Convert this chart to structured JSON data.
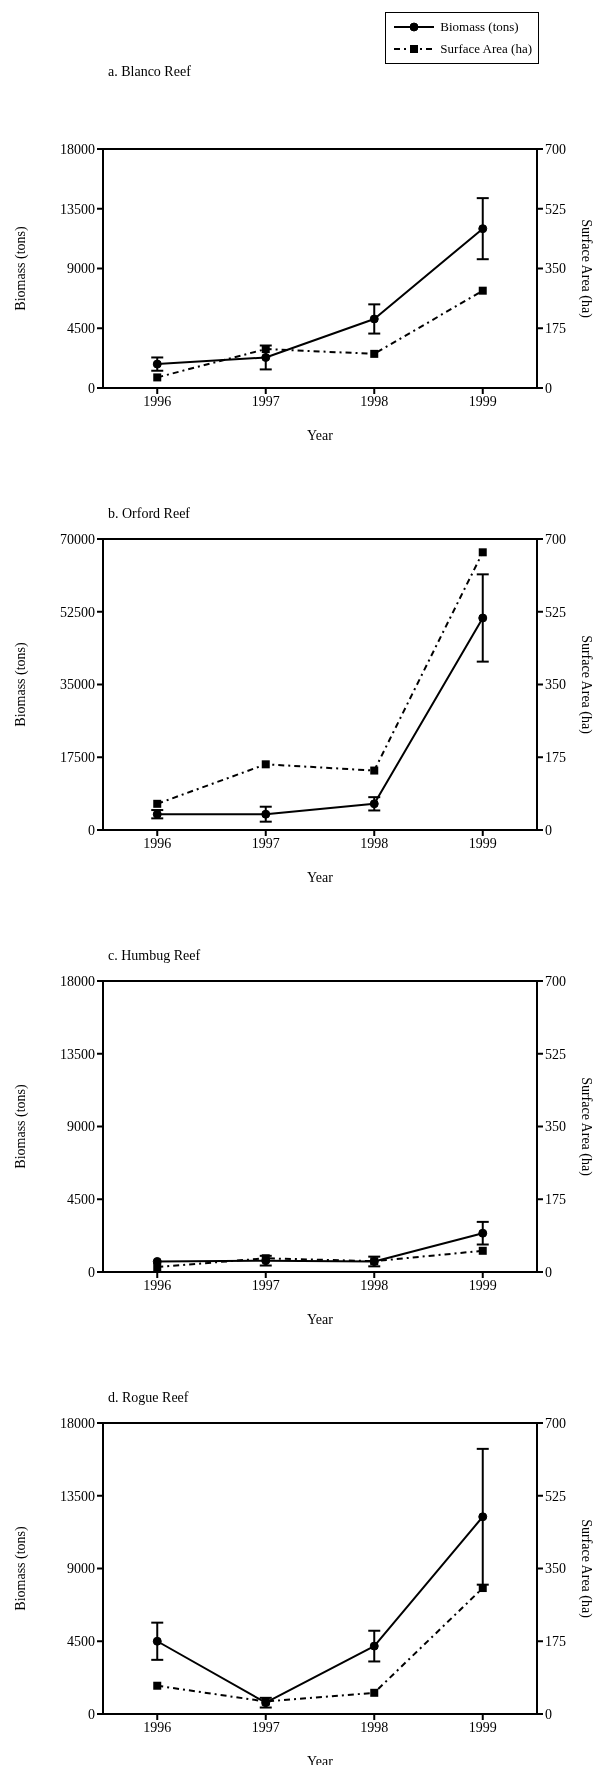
{
  "chart_data": [
    {
      "type": "line",
      "title": "a. Blanco Reef",
      "xlabel": "Year",
      "ylabel": "Biomass (tons)",
      "y2label": "Surface Area (ha)",
      "x": [
        1996,
        1997,
        1998,
        1999
      ],
      "xlim": [
        1995.5,
        1999.5
      ],
      "xticks": [
        1996,
        1997,
        1998,
        1999
      ],
      "ylim": [
        0,
        18000
      ],
      "yticks": [
        0,
        4500,
        9000,
        13500,
        18000
      ],
      "y2lim": [
        0,
        700
      ],
      "y2ticks": [
        0,
        175,
        350,
        525,
        700
      ],
      "legend": "top right",
      "grid": false,
      "series": [
        {
          "name": "Biomass (tons)",
          "color": "#000000",
          "values": [
            1800,
            2300,
            5200,
            12000
          ],
          "errors": [
            500,
            900,
            1100,
            2300
          ],
          "marker": "circle",
          "line_style": "solid"
        },
        {
          "name": "Surface Area (ha)",
          "color": "#000000",
          "values": [
            31,
            114,
            100,
            285
          ],
          "axis": "y2",
          "marker": "square",
          "line_style": "dashed"
        }
      ]
    },
    {
      "type": "line",
      "title": "b. Orford Reef",
      "xlabel": "Year",
      "ylabel": "Biomass (tons)",
      "y2label": "Surface Area (ha)",
      "x": [
        1996,
        1997,
        1998,
        1999
      ],
      "xlim": [
        1995.5,
        1999.5
      ],
      "xticks": [
        1996,
        1997,
        1998,
        1999
      ],
      "ylim": [
        0,
        70000
      ],
      "yticks": [
        0,
        17500,
        35000,
        52500,
        70000
      ],
      "y2lim": [
        0,
        700
      ],
      "y2ticks": [
        0,
        175,
        350,
        525,
        700
      ],
      "grid": false,
      "series": [
        {
          "color": "#000000",
          "values": [
            3800,
            3800,
            6300,
            51000
          ],
          "errors": [
            1000,
            1800,
            1600,
            10500
          ],
          "marker": "circle",
          "line_style": "solid"
        },
        {
          "color": "#000000",
          "values": [
            63,
            158,
            143,
            668
          ],
          "axis": "y2",
          "marker": "square",
          "line_style": "dashed"
        }
      ]
    },
    {
      "type": "line",
      "title": "c. Humbug Reef",
      "xlabel": "Year",
      "ylabel": "Biomass (tons)",
      "y2label": "Surface Area (ha)",
      "x": [
        1996,
        1997,
        1998,
        1999
      ],
      "xlim": [
        1995.5,
        1999.5
      ],
      "xticks": [
        1996,
        1997,
        1998,
        1999
      ],
      "ylim": [
        0,
        18000
      ],
      "yticks": [
        0,
        4500,
        9000,
        13500,
        18000
      ],
      "y2lim": [
        0,
        700
      ],
      "y2ticks": [
        0,
        175,
        350,
        525,
        700
      ],
      "grid": false,
      "series": [
        {
          "color": "#000000",
          "values": [
            650,
            700,
            650,
            2400
          ],
          "errors": [
            null,
            300,
            300,
            700
          ],
          "marker": "circle",
          "line_style": "solid"
        },
        {
          "color": "#000000",
          "values": [
            12,
            33,
            26,
            51
          ],
          "axis": "y2",
          "marker": "square",
          "line_style": "dashed"
        }
      ]
    },
    {
      "type": "line",
      "title": "d. Rogue Reef",
      "xlabel": "Year",
      "ylabel": "Biomass (tons)",
      "y2label": "Surface Area (ha)",
      "x": [
        1996,
        1997,
        1998,
        1999
      ],
      "xlim": [
        1995.5,
        1999.5
      ],
      "xticks": [
        1996,
        1997,
        1998,
        1999
      ],
      "ylim": [
        0,
        18000
      ],
      "yticks": [
        0,
        4500,
        9000,
        13500,
        18000
      ],
      "y2lim": [
        0,
        700
      ],
      "y2ticks": [
        0,
        175,
        350,
        525,
        700
      ],
      "grid": false,
      "series": [
        {
          "color": "#000000",
          "values": [
            4500,
            700,
            4200,
            12200
          ],
          "errors": [
            1150,
            300,
            950,
            4200
          ],
          "marker": "circle",
          "line_style": "solid"
        },
        {
          "color": "#000000",
          "values": [
            68,
            30,
            51,
            303
          ],
          "axis": "y2",
          "marker": "square",
          "line_style": "dashed"
        }
      ]
    }
  ]
}
